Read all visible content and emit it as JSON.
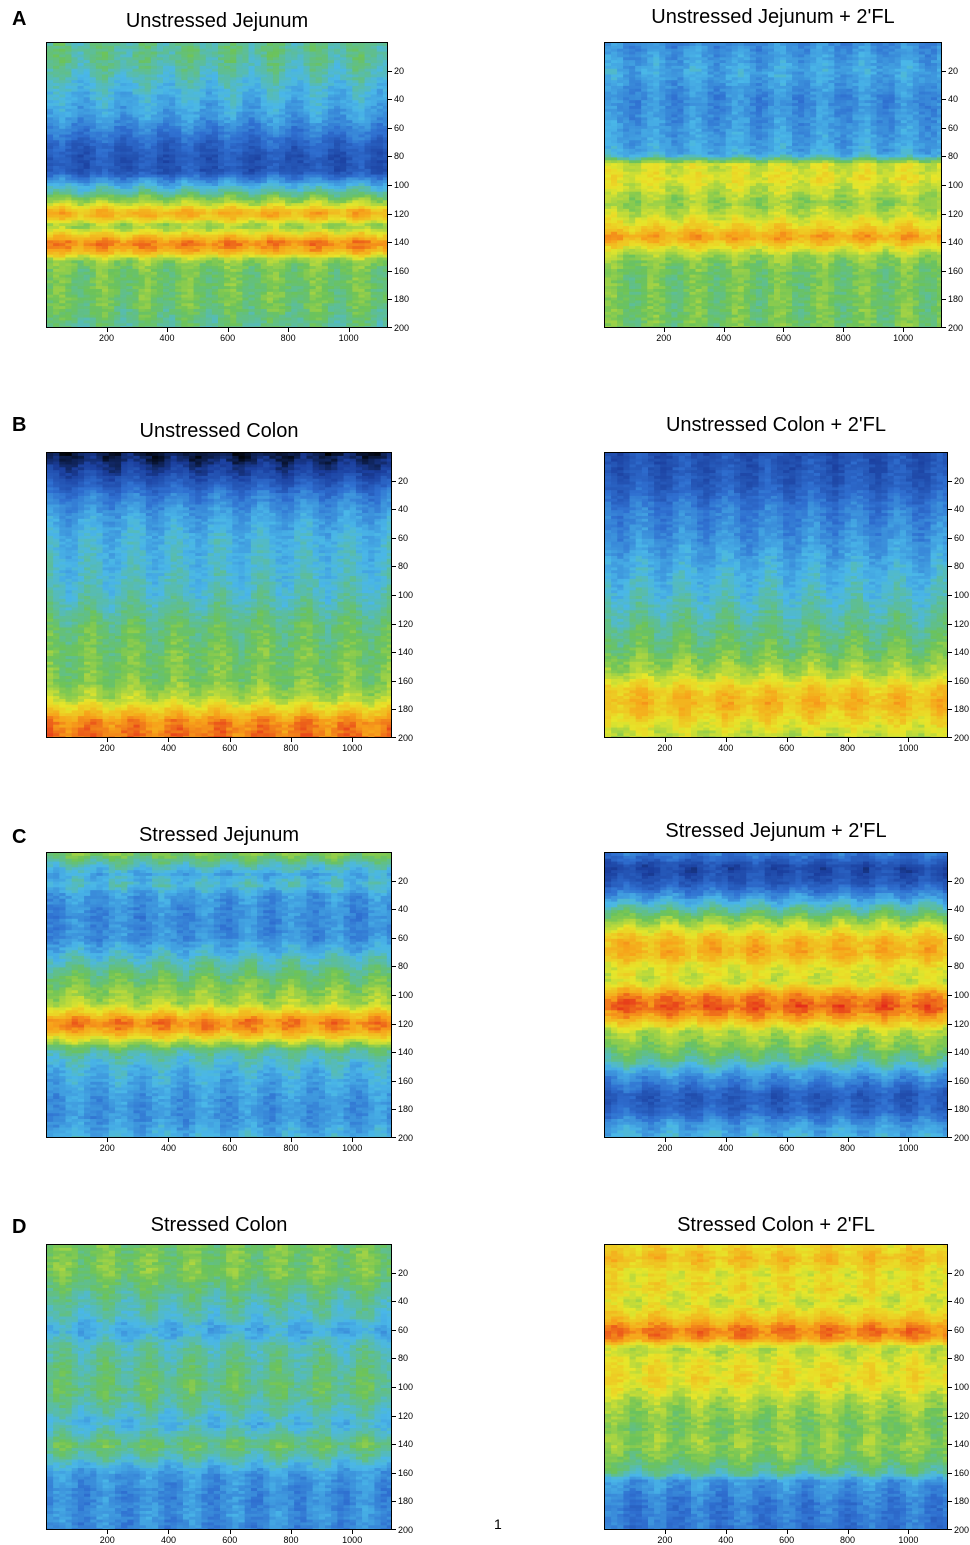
{
  "panels": [
    {
      "letter": "A"
    },
    {
      "letter": "B"
    },
    {
      "letter": "C"
    },
    {
      "letter": "D"
    }
  ],
  "page_number": "1",
  "colormap": [
    "#000000",
    "#1b3f9e",
    "#2f6fd0",
    "#4ab7e8",
    "#6cc35a",
    "#e7e62a",
    "#f7a21a",
    "#e42a1a"
  ],
  "chart_data": [
    {
      "type": "heatmap",
      "title": "Unstressed Jejunum",
      "xlim": [
        0,
        1130
      ],
      "ylim": [
        0,
        200
      ],
      "x_ticks": [
        "200",
        "400",
        "600",
        "800",
        "1000"
      ],
      "y_ticks": [
        "20",
        "40",
        "60",
        "80",
        "100",
        "120",
        "140",
        "160",
        "180",
        "200"
      ],
      "profile": [
        [
          0,
          3.6
        ],
        [
          10,
          3.6
        ],
        [
          20,
          3.4
        ],
        [
          30,
          3.1
        ],
        [
          40,
          2.9
        ],
        [
          50,
          2.7
        ],
        [
          60,
          2.3
        ],
        [
          70,
          1.8
        ],
        [
          80,
          1.5
        ],
        [
          90,
          1.5
        ],
        [
          95,
          2.3
        ],
        [
          100,
          3.0
        ],
        [
          105,
          3.6
        ],
        [
          112,
          4.6
        ],
        [
          118,
          5.8
        ],
        [
          122,
          5.6
        ],
        [
          128,
          4.3
        ],
        [
          135,
          5.5
        ],
        [
          140,
          6.3
        ],
        [
          146,
          5.8
        ],
        [
          152,
          4.3
        ],
        [
          160,
          4.0
        ],
        [
          180,
          4.0
        ],
        [
          200,
          3.6
        ]
      ]
    },
    {
      "type": "heatmap",
      "title": "Unstressed Jejunum + 2'FL",
      "xlim": [
        0,
        1130
      ],
      "ylim": [
        0,
        200
      ],
      "x_ticks": [
        "200",
        "400",
        "600",
        "800",
        "1000"
      ],
      "y_ticks": [
        "20",
        "40",
        "60",
        "80",
        "100",
        "120",
        "140",
        "160",
        "180",
        "200"
      ],
      "profile": [
        [
          0,
          2.4
        ],
        [
          20,
          2.8
        ],
        [
          40,
          2.4
        ],
        [
          60,
          2.6
        ],
        [
          78,
          2.8
        ],
        [
          85,
          4.8
        ],
        [
          95,
          5.0
        ],
        [
          105,
          4.6
        ],
        [
          112,
          4.3
        ],
        [
          120,
          4.7
        ],
        [
          130,
          5.4
        ],
        [
          136,
          6.0
        ],
        [
          142,
          5.2
        ],
        [
          150,
          4.3
        ],
        [
          160,
          4.0
        ],
        [
          180,
          4.0
        ],
        [
          200,
          4.0
        ]
      ]
    },
    {
      "type": "heatmap",
      "title": "Unstressed Colon",
      "xlim": [
        0,
        1130
      ],
      "ylim": [
        0,
        200
      ],
      "x_ticks": [
        "200",
        "400",
        "600",
        "800",
        "1000"
      ],
      "y_ticks": [
        "20",
        "40",
        "60",
        "80",
        "100",
        "120",
        "140",
        "160",
        "180",
        "200"
      ],
      "profile": [
        [
          0,
          0.4
        ],
        [
          8,
          0.8
        ],
        [
          18,
          1.4
        ],
        [
          30,
          2.2
        ],
        [
          45,
          2.7
        ],
        [
          60,
          3.0
        ],
        [
          80,
          3.1
        ],
        [
          100,
          3.3
        ],
        [
          120,
          3.8
        ],
        [
          140,
          4.0
        ],
        [
          160,
          4.1
        ],
        [
          172,
          4.6
        ],
        [
          180,
          5.4
        ],
        [
          188,
          6.2
        ],
        [
          200,
          6.4
        ]
      ]
    },
    {
      "type": "heatmap",
      "title": "Unstressed Colon + 2'FL",
      "xlim": [
        0,
        1130
      ],
      "ylim": [
        0,
        200
      ],
      "x_ticks": [
        "200",
        "400",
        "600",
        "800",
        "1000"
      ],
      "y_ticks": [
        "20",
        "40",
        "60",
        "80",
        "100",
        "120",
        "140",
        "160",
        "180",
        "200"
      ],
      "profile": [
        [
          0,
          1.4
        ],
        [
          20,
          1.6
        ],
        [
          40,
          2.2
        ],
        [
          60,
          2.5
        ],
        [
          80,
          2.9
        ],
        [
          100,
          3.2
        ],
        [
          120,
          3.6
        ],
        [
          140,
          4.0
        ],
        [
          155,
          4.6
        ],
        [
          165,
          5.4
        ],
        [
          175,
          5.7
        ],
        [
          185,
          5.3
        ],
        [
          195,
          4.8
        ],
        [
          200,
          4.6
        ]
      ]
    },
    {
      "type": "heatmap",
      "title": "Stressed Jejunum",
      "xlim": [
        0,
        1130
      ],
      "ylim": [
        0,
        200
      ],
      "x_ticks": [
        "200",
        "400",
        "600",
        "800",
        "1000"
      ],
      "y_ticks": [
        "20",
        "40",
        "60",
        "80",
        "100",
        "120",
        "140",
        "160",
        "180",
        "200"
      ],
      "profile": [
        [
          0,
          4.2
        ],
        [
          8,
          3.4
        ],
        [
          15,
          2.8
        ],
        [
          22,
          3.2
        ],
        [
          30,
          2.6
        ],
        [
          45,
          2.4
        ],
        [
          60,
          2.5
        ],
        [
          75,
          3.3
        ],
        [
          85,
          3.8
        ],
        [
          95,
          4.2
        ],
        [
          105,
          4.5
        ],
        [
          112,
          5.4
        ],
        [
          118,
          6.3
        ],
        [
          124,
          6.0
        ],
        [
          130,
          5.0
        ],
        [
          138,
          3.6
        ],
        [
          150,
          3.0
        ],
        [
          170,
          2.6
        ],
        [
          185,
          2.5
        ],
        [
          200,
          3.0
        ]
      ]
    },
    {
      "type": "heatmap",
      "title": "Stressed Jejunum + 2'FL",
      "xlim": [
        0,
        1130
      ],
      "ylim": [
        0,
        200
      ],
      "x_ticks": [
        "200",
        "400",
        "600",
        "800",
        "1000"
      ],
      "y_ticks": [
        "20",
        "40",
        "60",
        "80",
        "100",
        "120",
        "140",
        "160",
        "180",
        "200"
      ],
      "profile": [
        [
          0,
          2.2
        ],
        [
          10,
          1.2
        ],
        [
          20,
          1.5
        ],
        [
          30,
          2.5
        ],
        [
          40,
          3.6
        ],
        [
          50,
          4.6
        ],
        [
          60,
          5.6
        ],
        [
          70,
          5.8
        ],
        [
          80,
          5.0
        ],
        [
          90,
          4.8
        ],
        [
          100,
          6.2
        ],
        [
          108,
          6.6
        ],
        [
          116,
          5.8
        ],
        [
          125,
          4.6
        ],
        [
          135,
          4.2
        ],
        [
          145,
          3.6
        ],
        [
          155,
          2.6
        ],
        [
          170,
          1.6
        ],
        [
          180,
          1.8
        ],
        [
          190,
          2.6
        ],
        [
          200,
          3.0
        ]
      ]
    },
    {
      "type": "heatmap",
      "title": "Stressed Colon",
      "xlim": [
        0,
        1130
      ],
      "ylim": [
        0,
        200
      ],
      "x_ticks": [
        "200",
        "400",
        "600",
        "800",
        "1000"
      ],
      "y_ticks": [
        "20",
        "40",
        "60",
        "80",
        "100",
        "120",
        "140",
        "160",
        "180",
        "200"
      ],
      "profile": [
        [
          0,
          4.0
        ],
        [
          20,
          4.1
        ],
        [
          35,
          3.6
        ],
        [
          50,
          3.3
        ],
        [
          60,
          2.8
        ],
        [
          70,
          3.4
        ],
        [
          85,
          3.6
        ],
        [
          100,
          3.8
        ],
        [
          115,
          3.4
        ],
        [
          125,
          3.0
        ],
        [
          140,
          3.9
        ],
        [
          150,
          3.3
        ],
        [
          160,
          2.6
        ],
        [
          175,
          2.4
        ],
        [
          190,
          2.5
        ],
        [
          200,
          2.3
        ]
      ]
    },
    {
      "type": "heatmap",
      "title": "Stressed Colon + 2'FL",
      "xlim": [
        0,
        1130
      ],
      "ylim": [
        0,
        200
      ],
      "x_ticks": [
        "200",
        "400",
        "600",
        "800",
        "1000"
      ],
      "y_ticks": [
        "20",
        "40",
        "60",
        "80",
        "100",
        "120",
        "140",
        "160",
        "180",
        "200"
      ],
      "profile": [
        [
          0,
          5.2
        ],
        [
          10,
          5.6
        ],
        [
          20,
          5.0
        ],
        [
          30,
          5.2
        ],
        [
          40,
          4.8
        ],
        [
          50,
          5.4
        ],
        [
          60,
          6.4
        ],
        [
          66,
          6.0
        ],
        [
          72,
          4.6
        ],
        [
          82,
          5.0
        ],
        [
          95,
          5.2
        ],
        [
          110,
          4.5
        ],
        [
          125,
          4.1
        ],
        [
          140,
          4.3
        ],
        [
          150,
          4.0
        ],
        [
          160,
          3.5
        ],
        [
          165,
          2.6
        ],
        [
          180,
          2.2
        ],
        [
          200,
          2.1
        ]
      ]
    }
  ]
}
